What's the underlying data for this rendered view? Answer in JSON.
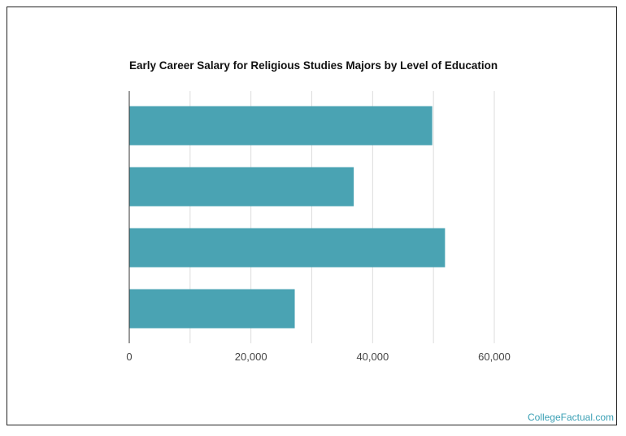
{
  "chart_data": {
    "type": "bar",
    "orientation": "horizontal",
    "title": "Early Career Salary for Religious Studies Majors by Level of Education",
    "xlabel": "",
    "ylabel": "",
    "categories": [
      "",
      "",
      "",
      ""
    ],
    "values": [
      49800,
      36900,
      51900,
      27200
    ],
    "xlim": [
      0,
      60000
    ],
    "xticks": [
      "0",
      "20,000",
      "40,000",
      "60,000"
    ],
    "grid": true,
    "bar_color": "#4aa3b3",
    "grid_color": "#dddddd"
  },
  "footer": {
    "credit": "CollegeFactual.com"
  }
}
